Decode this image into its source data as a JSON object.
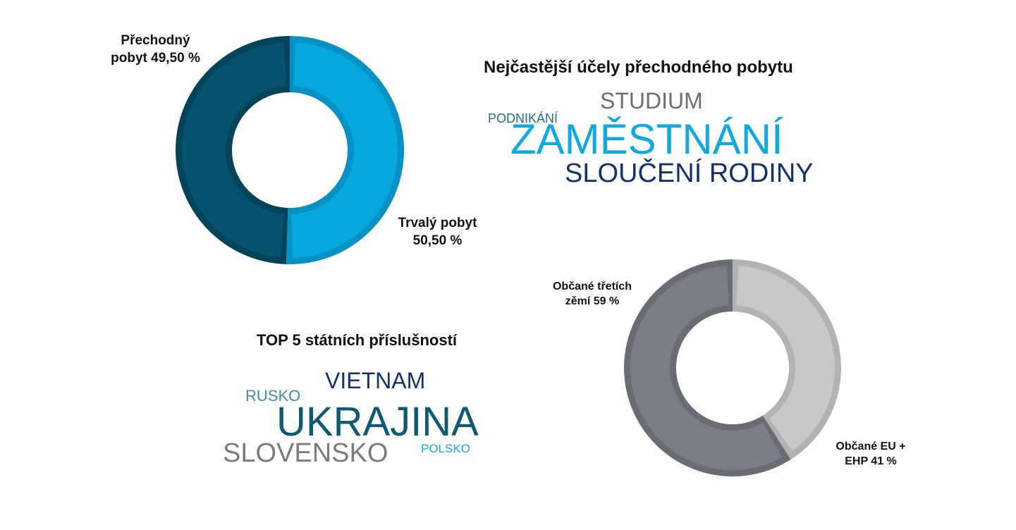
{
  "chart_data": [
    {
      "type": "pie",
      "variant": "donut",
      "slices": [
        {
          "name": "Trvalý pobyt",
          "value": 50.5,
          "color": "#04a7df",
          "shadow": "#0591c4"
        },
        {
          "name": "Přechodný pobyt",
          "value": 49.5,
          "color": "#04526b",
          "shadow": "#03445a"
        }
      ],
      "labels": [
        {
          "lines": [
            "Přechodný",
            "pobyt 49,50 %"
          ]
        },
        {
          "lines": [
            "Trvalý pobyt",
            "50,50 %"
          ]
        }
      ]
    },
    {
      "type": "pie",
      "variant": "donut",
      "slices": [
        {
          "name": "Občané EU + EHP",
          "value": 41,
          "color": "#c8c8c8",
          "shadow": "#b2b2b2"
        },
        {
          "name": "Občané třetích zěmí",
          "value": 59,
          "color": "#787d86",
          "shadow": "#686c74"
        }
      ],
      "labels": [
        {
          "lines": [
            "Občané třetích",
            "zěmí 59 %"
          ]
        },
        {
          "lines": [
            "Občané EU +",
            "EHP 41 %"
          ]
        }
      ]
    }
  ],
  "purposes_cloud": {
    "title": "Nejčastější účely přechodného pobytu",
    "words": [
      {
        "text": "STUDIUM",
        "color": "#6e6e6e"
      },
      {
        "text": "PODNIKÁNÍ",
        "color": "#1f6e8c"
      },
      {
        "text": "ZAMĚSTNÁNÍ",
        "color": "#12a9e0"
      },
      {
        "text": "SLOUČENÍ RODINY",
        "color": "#14316b"
      }
    ]
  },
  "nationalities_cloud": {
    "title": "TOP 5 státních příslušností",
    "words": [
      {
        "text": "VIETNAM",
        "color": "#14316b"
      },
      {
        "text": "RUSKO",
        "color": "#3d8fa8"
      },
      {
        "text": "UKRAJINA",
        "color": "#0f5a73"
      },
      {
        "text": "SLOVENSKO",
        "color": "#7a7c80"
      },
      {
        "text": "POLSKO",
        "color": "#12a9e0"
      }
    ]
  }
}
